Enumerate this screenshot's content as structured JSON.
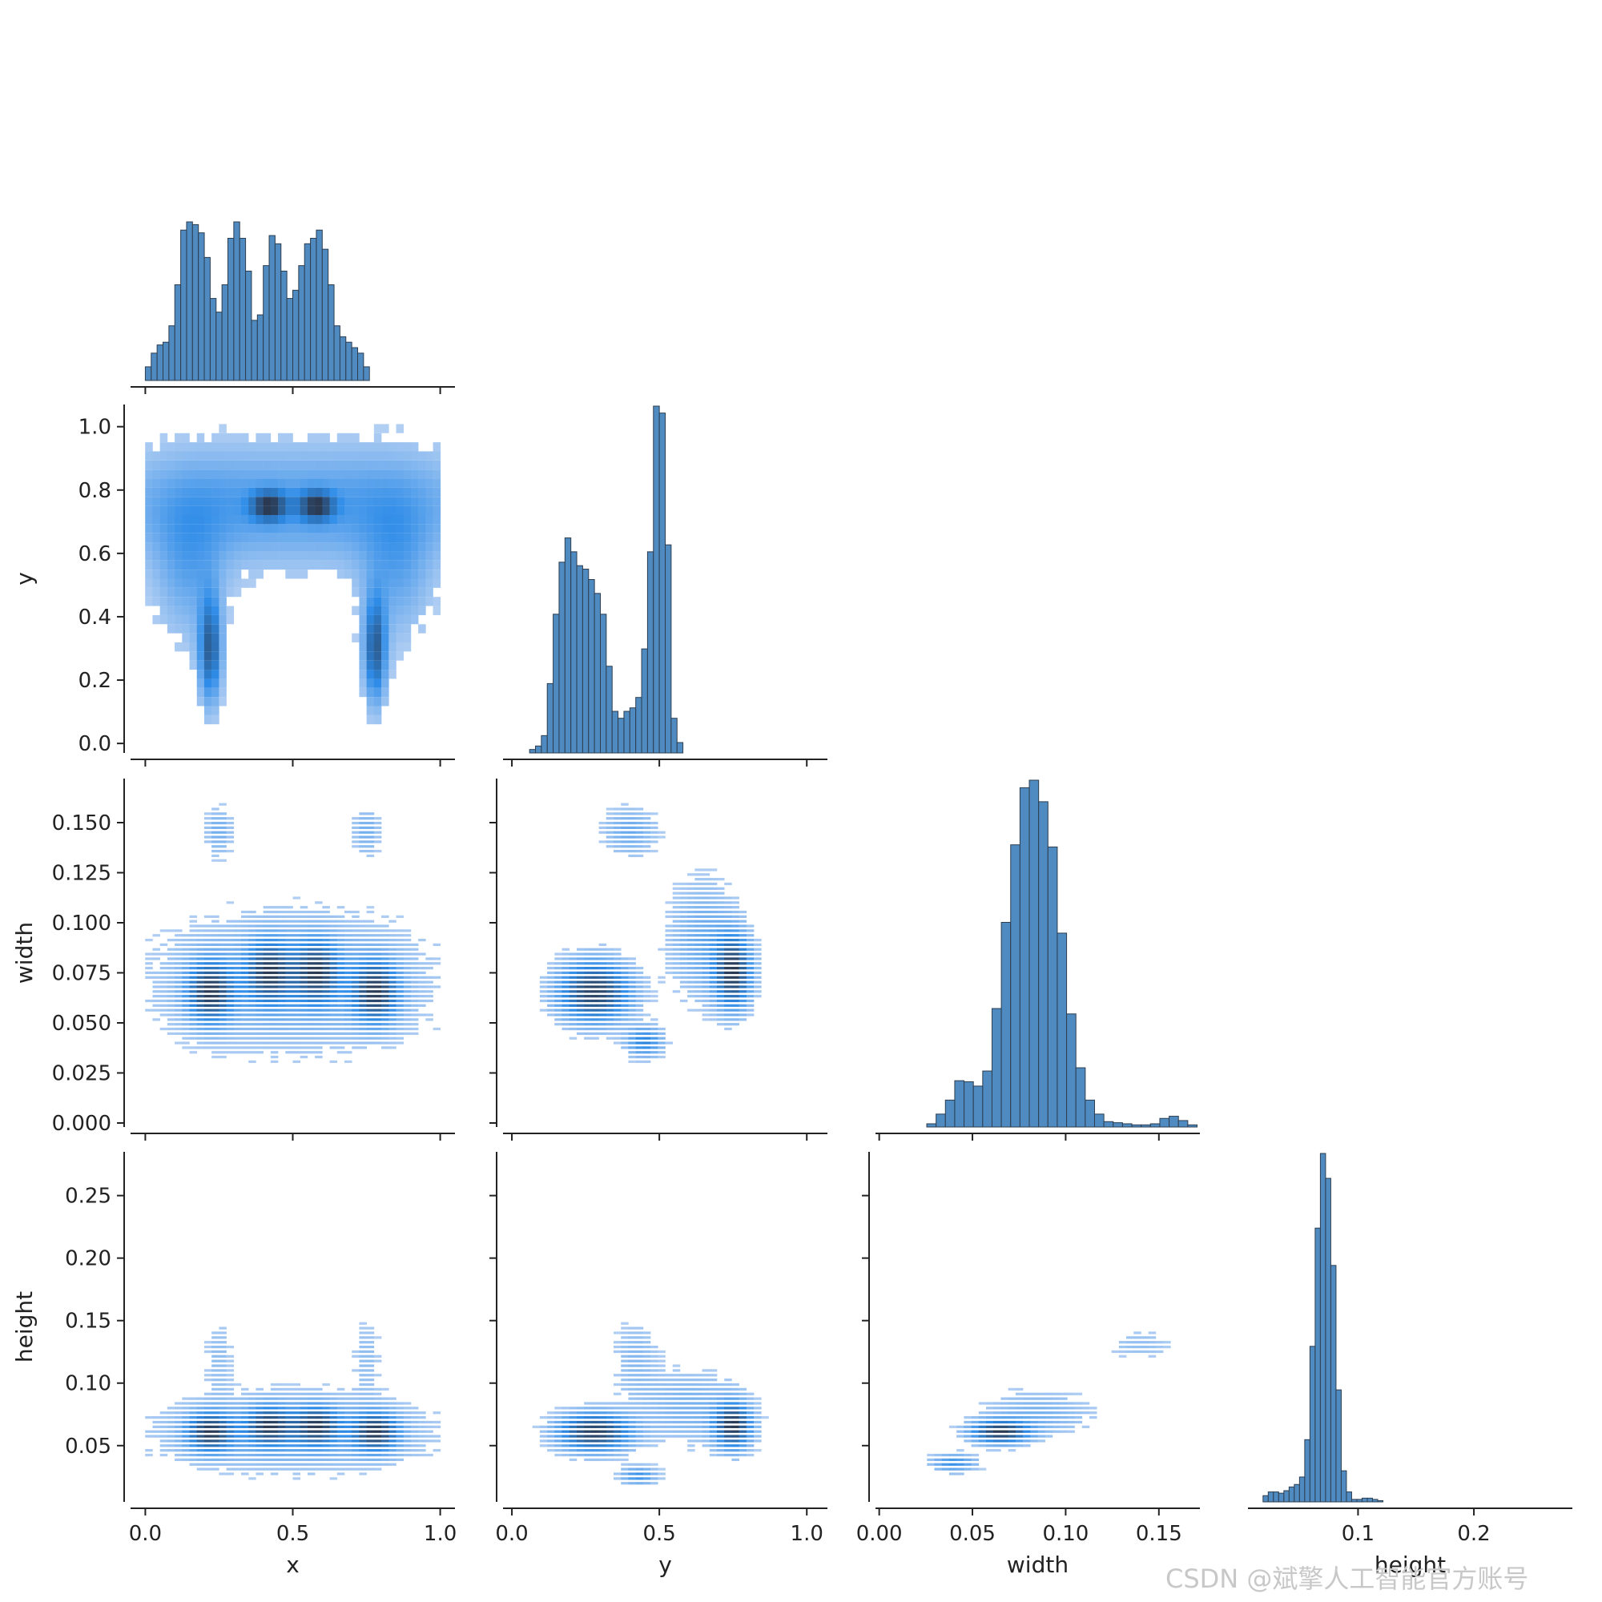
{
  "watermark": "CSDN @斌擎人工智能官方账号",
  "colors": {
    "hist_fill": "#4f8ac0",
    "hist_edge": "#2d3e50",
    "heat_low": "#c9daf5",
    "heat_mid": "#2e8ce8",
    "heat_high": "#2b3a52"
  },
  "chart_data": {
    "type": "pairplot-corner",
    "variables": [
      "x",
      "y",
      "width",
      "height"
    ],
    "axes": {
      "x": {
        "label": "x",
        "lim": [
          -0.05,
          1.05
        ],
        "ticks": [
          0.0,
          0.5,
          1.0
        ],
        "tick_labels": [
          "0.0",
          "0.5",
          "1.0"
        ]
      },
      "y": {
        "label": "y",
        "lim": [
          -0.03,
          1.07
        ],
        "ticks": [
          0.0,
          0.2,
          0.4,
          0.6,
          0.8,
          1.0
        ],
        "tick_labels": [
          "0.0",
          "0.2",
          "0.4",
          "0.6",
          "0.8",
          "1.0"
        ],
        "col_ticks": [
          0.0,
          0.5,
          1.0
        ],
        "col_tick_labels": [
          "0.0",
          "0.5",
          "1.0"
        ]
      },
      "width": {
        "label": "width",
        "lim": [
          -0.002,
          0.172
        ],
        "ticks": [
          0.0,
          0.025,
          0.05,
          0.075,
          0.1,
          0.125,
          0.15
        ],
        "tick_labels": [
          "0.000",
          "0.025",
          "0.050",
          "0.075",
          "0.100",
          "0.125",
          "0.150"
        ],
        "col_ticks": [
          0.0,
          0.05,
          0.1,
          0.15
        ],
        "col_tick_labels": [
          "0.00",
          "0.05",
          "0.10",
          "0.15"
        ]
      },
      "height": {
        "label": "height",
        "lim": [
          0.005,
          0.285
        ],
        "ticks": [
          0.05,
          0.1,
          0.15,
          0.2,
          0.25
        ],
        "tick_labels": [
          "0.05",
          "0.10",
          "0.15",
          "0.20",
          "0.25"
        ],
        "col_ticks": [
          0.1,
          0.2
        ],
        "col_tick_labels": [
          "0.1",
          "0.2"
        ]
      }
    },
    "histograms": {
      "x": {
        "bin_start": 0.0,
        "bin_width": 0.02,
        "counts": [
          5,
          10,
          13,
          14,
          20,
          35,
          55,
          58,
          57,
          54,
          45,
          30,
          25,
          35,
          52,
          58,
          52,
          40,
          22,
          24,
          42,
          53,
          50,
          40,
          30,
          33,
          42,
          50,
          52,
          55,
          48,
          35,
          20,
          16,
          14,
          12,
          10,
          5
        ]
      },
      "y": {
        "bin_start": 0.06,
        "bin_width": 0.02,
        "counts": [
          1,
          2,
          5,
          20,
          40,
          55,
          62,
          58,
          54,
          53,
          50,
          46,
          40,
          25,
          12,
          10,
          12,
          13,
          16,
          30,
          58,
          100,
          98,
          60,
          10,
          3
        ]
      },
      "width": {
        "bin_start": 0.0255,
        "bin_width": 0.005,
        "counts": [
          3,
          12,
          25,
          43,
          42,
          38,
          52,
          110,
          190,
          262,
          315,
          322,
          302,
          260,
          180,
          105,
          55,
          25,
          12,
          5,
          4,
          3,
          2,
          2,
          3,
          8,
          10,
          6,
          2
        ]
      },
      "height": {
        "bin_start": 0.018,
        "bin_width": 0.0045,
        "counts": [
          5,
          8,
          8,
          7,
          9,
          12,
          14,
          20,
          50,
          125,
          220,
          280,
          260,
          190,
          90,
          25,
          8,
          2,
          2,
          3,
          3,
          2,
          1
        ]
      }
    },
    "density_clusters": {
      "y_vs_x": [
        {
          "center": [
            0.22,
            0.75
          ],
          "spread": [
            0.26,
            0.12
          ],
          "weight": 0.35,
          "angle": 0
        },
        {
          "center": [
            0.78,
            0.75
          ],
          "spread": [
            0.26,
            0.12
          ],
          "weight": 0.35,
          "angle": 0
        },
        {
          "center": [
            0.42,
            0.75
          ],
          "spread": [
            0.04,
            0.03
          ],
          "weight": 1.0,
          "angle": 0
        },
        {
          "center": [
            0.58,
            0.75
          ],
          "spread": [
            0.04,
            0.03
          ],
          "weight": 1.0,
          "angle": 0
        },
        {
          "center": [
            0.22,
            0.3
          ],
          "spread": [
            0.025,
            0.11
          ],
          "weight": 0.9,
          "angle": 0.55
        },
        {
          "center": [
            0.78,
            0.3
          ],
          "spread": [
            0.025,
            0.11
          ],
          "weight": 0.9,
          "angle": -0.55
        },
        {
          "center": [
            0.15,
            0.55
          ],
          "spread": [
            0.08,
            0.15
          ],
          "weight": 0.3,
          "angle": 0
        },
        {
          "center": [
            0.85,
            0.55
          ],
          "spread": [
            0.08,
            0.15
          ],
          "weight": 0.3,
          "angle": 0
        }
      ],
      "width_vs_x": [
        {
          "center": [
            0.22,
            0.065
          ],
          "spread": [
            0.05,
            0.01
          ],
          "weight": 1.0,
          "angle": 0
        },
        {
          "center": [
            0.42,
            0.075
          ],
          "spread": [
            0.05,
            0.01
          ],
          "weight": 0.9,
          "angle": 0
        },
        {
          "center": [
            0.58,
            0.075
          ],
          "spread": [
            0.05,
            0.01
          ],
          "weight": 0.9,
          "angle": 0
        },
        {
          "center": [
            0.78,
            0.065
          ],
          "spread": [
            0.05,
            0.01
          ],
          "weight": 1.0,
          "angle": 0
        },
        {
          "center": [
            0.5,
            0.07
          ],
          "spread": [
            0.3,
            0.022
          ],
          "weight": 0.3,
          "angle": 0
        },
        {
          "center": [
            0.25,
            0.145
          ],
          "spread": [
            0.03,
            0.008
          ],
          "weight": 0.25,
          "angle": 0
        },
        {
          "center": [
            0.75,
            0.145
          ],
          "spread": [
            0.03,
            0.008
          ],
          "weight": 0.25,
          "angle": 0
        }
      ],
      "width_vs_y": [
        {
          "center": [
            0.28,
            0.065
          ],
          "spread": [
            0.08,
            0.01
          ],
          "weight": 1.0,
          "angle": 0
        },
        {
          "center": [
            0.75,
            0.075
          ],
          "spread": [
            0.04,
            0.012
          ],
          "weight": 1.0,
          "angle": 0
        },
        {
          "center": [
            0.45,
            0.04
          ],
          "spread": [
            0.04,
            0.005
          ],
          "weight": 0.5,
          "angle": 0
        },
        {
          "center": [
            0.65,
            0.09
          ],
          "spread": [
            0.08,
            0.02
          ],
          "weight": 0.25,
          "angle": 0
        },
        {
          "center": [
            0.4,
            0.145
          ],
          "spread": [
            0.06,
            0.008
          ],
          "weight": 0.25,
          "angle": 0
        }
      ],
      "height_vs_x": [
        {
          "center": [
            0.22,
            0.06
          ],
          "spread": [
            0.05,
            0.01
          ],
          "weight": 1.0,
          "angle": 0
        },
        {
          "center": [
            0.42,
            0.065
          ],
          "spread": [
            0.05,
            0.01
          ],
          "weight": 0.9,
          "angle": 0
        },
        {
          "center": [
            0.58,
            0.065
          ],
          "spread": [
            0.05,
            0.01
          ],
          "weight": 0.9,
          "angle": 0
        },
        {
          "center": [
            0.78,
            0.06
          ],
          "spread": [
            0.05,
            0.01
          ],
          "weight": 1.0,
          "angle": 0
        },
        {
          "center": [
            0.5,
            0.06
          ],
          "spread": [
            0.3,
            0.02
          ],
          "weight": 0.3,
          "angle": 0
        },
        {
          "center": [
            0.25,
            0.12
          ],
          "spread": [
            0.03,
            0.02
          ],
          "weight": 0.15,
          "angle": 0
        },
        {
          "center": [
            0.75,
            0.12
          ],
          "spread": [
            0.03,
            0.02
          ],
          "weight": 0.15,
          "angle": 0
        }
      ],
      "height_vs_y": [
        {
          "center": [
            0.28,
            0.06
          ],
          "spread": [
            0.08,
            0.01
          ],
          "weight": 1.0,
          "angle": 0
        },
        {
          "center": [
            0.75,
            0.065
          ],
          "spread": [
            0.04,
            0.012
          ],
          "weight": 1.0,
          "angle": 0
        },
        {
          "center": [
            0.43,
            0.025
          ],
          "spread": [
            0.04,
            0.005
          ],
          "weight": 0.4,
          "angle": 0
        },
        {
          "center": [
            0.42,
            0.12
          ],
          "spread": [
            0.05,
            0.02
          ],
          "weight": 0.15,
          "angle": 0
        },
        {
          "center": [
            0.6,
            0.08
          ],
          "spread": [
            0.12,
            0.02
          ],
          "weight": 0.2,
          "angle": 0
        }
      ],
      "height_vs_width": [
        {
          "center": [
            0.065,
            0.06
          ],
          "spread": [
            0.01,
            0.006
          ],
          "weight": 1.0,
          "angle": 0.55
        },
        {
          "center": [
            0.04,
            0.035
          ],
          "spread": [
            0.008,
            0.005
          ],
          "weight": 0.4,
          "angle": 0.55
        },
        {
          "center": [
            0.14,
            0.13
          ],
          "spread": [
            0.012,
            0.008
          ],
          "weight": 0.12,
          "angle": 0.6
        },
        {
          "center": [
            0.085,
            0.075
          ],
          "spread": [
            0.02,
            0.012
          ],
          "weight": 0.2,
          "angle": 0.55
        }
      ]
    }
  }
}
